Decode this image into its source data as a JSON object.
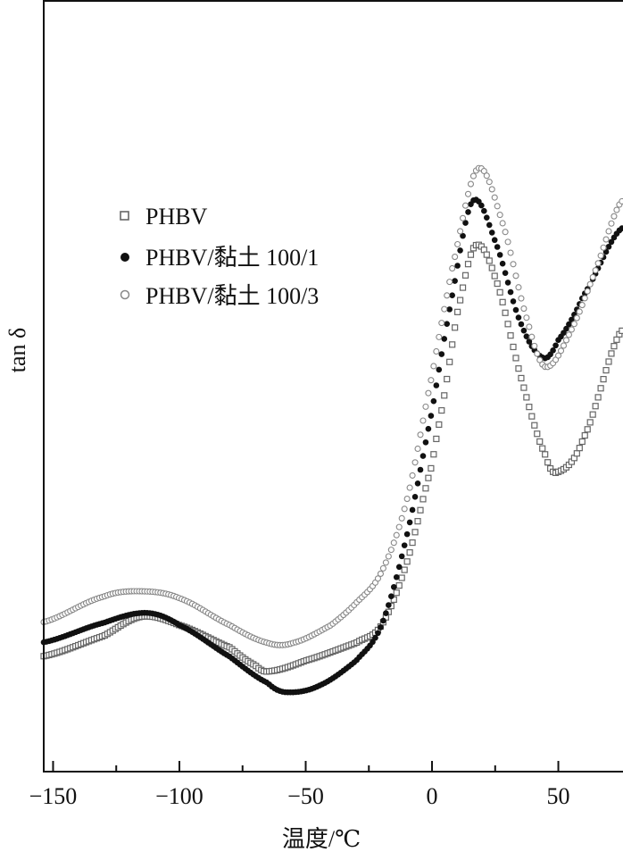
{
  "chart_data": {
    "type": "scatter",
    "xlabel": "温度/℃",
    "ylabel": "tan δ",
    "xlim": [
      -153.7,
      75.6
    ],
    "ylim": [
      0,
      1
    ],
    "y_ticks_labeled": false,
    "x_ticks": [
      -150,
      -100,
      -50,
      0,
      50
    ],
    "x_tick_labels": [
      "−150",
      "−100",
      "−50",
      "0",
      "50"
    ],
    "x_minor_ticks": [
      -125,
      -75,
      -25,
      25
    ],
    "grid": false,
    "legend_placement": "upper-left",
    "series": [
      {
        "name": "PHBV",
        "marker": "open-square",
        "color": "#666666",
        "x": [
          -155,
          -130,
          -115,
          -100,
          -80,
          -70,
          -65,
          -50,
          -30,
          -20,
          -10,
          0,
          5,
          10,
          17,
          25,
          35,
          45,
          50,
          60,
          75
        ],
        "y": [
          0.149,
          0.176,
          0.201,
          0.19,
          0.161,
          0.138,
          0.13,
          0.144,
          0.167,
          0.19,
          0.271,
          0.398,
          0.491,
          0.595,
          0.682,
          0.641,
          0.514,
          0.41,
          0.389,
          0.433,
          0.572
        ]
      },
      {
        "name": "PHBV/黏土 100/1",
        "marker": "filled-circle",
        "color": "#111111",
        "x": [
          -155,
          -130,
          -113,
          -100,
          -80,
          -65,
          -58,
          -45,
          -30,
          -20,
          -10,
          0,
          8,
          16,
          25,
          35,
          44,
          50,
          60,
          75
        ],
        "y": [
          0.167,
          0.193,
          0.206,
          0.19,
          0.149,
          0.115,
          0.103,
          0.111,
          0.144,
          0.19,
          0.306,
          0.468,
          0.618,
          0.74,
          0.688,
          0.583,
          0.537,
          0.56,
          0.618,
          0.705
        ]
      },
      {
        "name": "PHBV/黏土 100/3",
        "marker": "open-circle",
        "color": "#888888",
        "x": [
          -155,
          -130,
          -115,
          -100,
          -80,
          -65,
          -55,
          -40,
          -30,
          -20,
          -10,
          0,
          8,
          18,
          28,
          38,
          45,
          55,
          65,
          75
        ],
        "y": [
          0.193,
          0.227,
          0.234,
          0.225,
          0.19,
          0.167,
          0.167,
          0.19,
          0.219,
          0.259,
          0.352,
          0.514,
          0.653,
          0.782,
          0.711,
          0.583,
          0.525,
          0.572,
          0.653,
          0.74
        ]
      }
    ]
  }
}
